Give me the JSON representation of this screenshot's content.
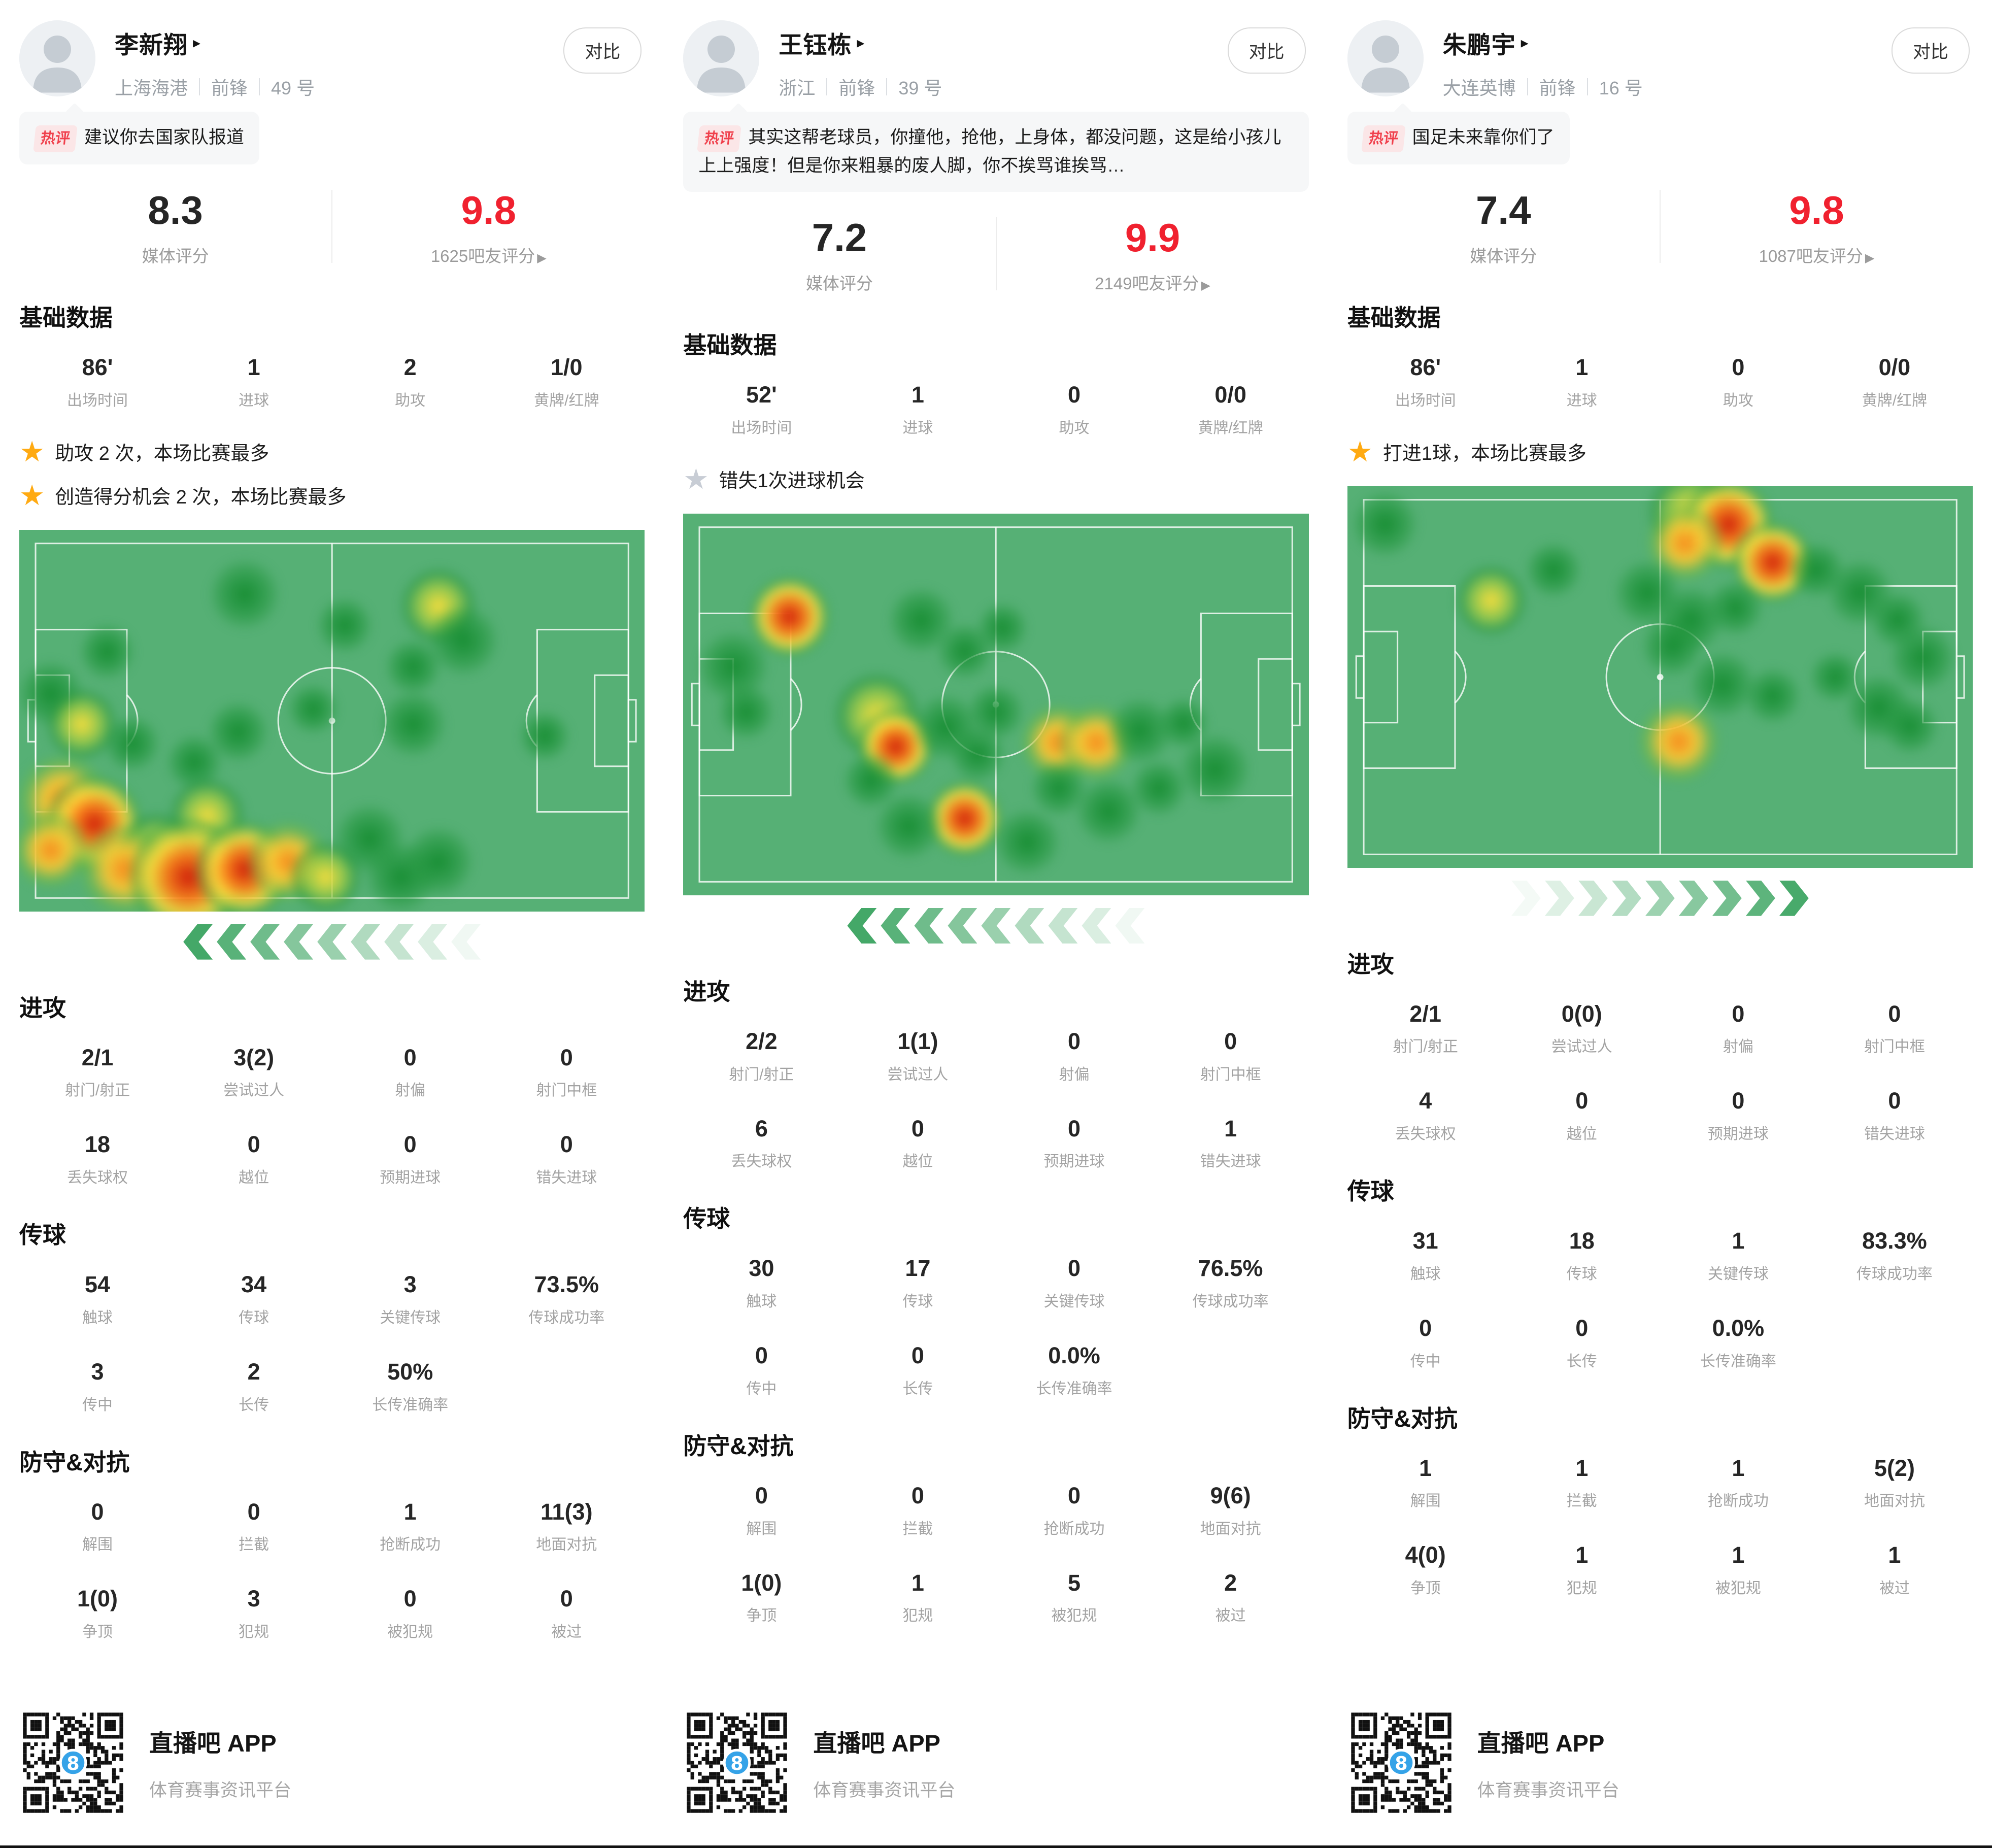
{
  "ui": {
    "compare_label": "对比",
    "hot_tag": "热评",
    "media_score_label": "媒体评分",
    "basic_title": "基础数据",
    "attack_title": "进攻",
    "passing_title": "传球",
    "defense_title": "防守&对抗",
    "detail_arrow": "▸",
    "fan_arrow": "▶",
    "accent_red": "#f0212f",
    "pitch_green": "#56b075",
    "chevron_green": "#44a868",
    "star_gold": "#ffaa12",
    "star_gray": "#c8cdd5"
  },
  "footer": {
    "app_name": "直播吧 APP",
    "tagline": "体育赛事资讯平台"
  },
  "color_levels": {
    "g": "green",
    "y": "yellow",
    "o": "orange",
    "r": "red"
  },
  "players": [
    {
      "name": "李新翔",
      "team": "上海海港",
      "position": "前锋",
      "number": "49 号",
      "comment": "建议你去国家队报道",
      "media_score": "8.3",
      "fan_score": "9.8",
      "fan_score_label": "1625吧友评分",
      "basic": {
        "items": [
          {
            "value": "86'",
            "label": "出场时间"
          },
          {
            "value": "1",
            "label": "进球"
          },
          {
            "value": "2",
            "label": "助攻"
          },
          {
            "value": "1/0",
            "label": "黄牌/红牌"
          }
        ]
      },
      "highlights": [
        {
          "star": "gold",
          "text": "助攻 2 次，本场比赛最多"
        },
        {
          "star": "gold",
          "text": "创造得分机会 2 次，本场比赛最多"
        }
      ],
      "heatmap": {
        "direction": "left",
        "points": [
          [
            0.36,
            0.17,
            "g",
            140
          ],
          [
            0.14,
            0.32,
            "g",
            110
          ],
          [
            0.52,
            0.25,
            "g",
            110
          ],
          [
            0.67,
            0.2,
            "y",
            150
          ],
          [
            0.71,
            0.29,
            "g",
            140
          ],
          [
            0.63,
            0.36,
            "g",
            110
          ],
          [
            0.05,
            0.43,
            "g",
            130
          ],
          [
            0.1,
            0.51,
            "y",
            140
          ],
          [
            0.18,
            0.56,
            "g",
            110
          ],
          [
            0.35,
            0.53,
            "g",
            120
          ],
          [
            0.47,
            0.47,
            "g",
            100
          ],
          [
            0.63,
            0.51,
            "g",
            130
          ],
          [
            0.28,
            0.61,
            "g",
            110
          ],
          [
            0.84,
            0.54,
            "g",
            100
          ],
          [
            0.07,
            0.71,
            "o",
            180
          ],
          [
            0.12,
            0.77,
            "r",
            190
          ],
          [
            0.05,
            0.84,
            "o",
            150
          ],
          [
            0.3,
            0.75,
            "y",
            150
          ],
          [
            0.22,
            0.84,
            "y",
            150
          ],
          [
            0.17,
            0.89,
            "o",
            180
          ],
          [
            0.27,
            0.91,
            "r",
            230
          ],
          [
            0.36,
            0.89,
            "r",
            190
          ],
          [
            0.43,
            0.87,
            "o",
            160
          ],
          [
            0.49,
            0.91,
            "y",
            140
          ],
          [
            0.56,
            0.81,
            "g",
            140
          ],
          [
            0.61,
            0.91,
            "g",
            140
          ],
          [
            0.67,
            0.87,
            "g",
            140
          ]
        ]
      },
      "attack": {
        "items": [
          {
            "value": "2/1",
            "label": "射门/射正"
          },
          {
            "value": "3(2)",
            "label": "尝试过人"
          },
          {
            "value": "0",
            "label": "射偏"
          },
          {
            "value": "0",
            "label": "射门中框"
          },
          {
            "value": "18",
            "label": "丢失球权"
          },
          {
            "value": "0",
            "label": "越位"
          },
          {
            "value": "0",
            "label": "预期进球"
          },
          {
            "value": "0",
            "label": "错失进球"
          }
        ]
      },
      "passing": {
        "items": [
          {
            "value": "54",
            "label": "触球"
          },
          {
            "value": "34",
            "label": "传球"
          },
          {
            "value": "3",
            "label": "关键传球"
          },
          {
            "value": "73.5%",
            "label": "传球成功率"
          },
          {
            "value": "3",
            "label": "传中"
          },
          {
            "value": "2",
            "label": "长传"
          },
          {
            "value": "50%",
            "label": "长传准确率"
          }
        ]
      },
      "defense": {
        "items": [
          {
            "value": "0",
            "label": "解围"
          },
          {
            "value": "0",
            "label": "拦截"
          },
          {
            "value": "1",
            "label": "抢断成功"
          },
          {
            "value": "11(3)",
            "label": "地面对抗"
          },
          {
            "value": "1(0)",
            "label": "争顶"
          },
          {
            "value": "3",
            "label": "犯规"
          },
          {
            "value": "0",
            "label": "被犯规"
          },
          {
            "value": "0",
            "label": "被过"
          }
        ]
      }
    },
    {
      "name": "王钰栋",
      "team": "浙江",
      "position": "前锋",
      "number": "39 号",
      "comment": "其实这帮老球员，你撞他，抢他，上身体，都没问题，这是给小孩儿上上强度！但是你来粗暴的废人脚，你不挨骂谁挨骂…",
      "media_score": "7.2",
      "fan_score": "9.9",
      "fan_score_label": "2149吧友评分",
      "basic": {
        "items": [
          {
            "value": "52'",
            "label": "出场时间"
          },
          {
            "value": "1",
            "label": "进球"
          },
          {
            "value": "0",
            "label": "助攻"
          },
          {
            "value": "0/0",
            "label": "黄牌/红牌"
          }
        ]
      },
      "highlights": [
        {
          "star": "gray",
          "text": "错失1次进球机会"
        }
      ],
      "heatmap": {
        "direction": "left",
        "points": [
          [
            0.17,
            0.27,
            "r",
            160
          ],
          [
            0.08,
            0.4,
            "g",
            140
          ],
          [
            0.1,
            0.52,
            "g",
            110
          ],
          [
            0.38,
            0.28,
            "g",
            130
          ],
          [
            0.45,
            0.36,
            "g",
            110
          ],
          [
            0.51,
            0.3,
            "g",
            100
          ],
          [
            0.31,
            0.53,
            "y",
            170
          ],
          [
            0.34,
            0.61,
            "r",
            150
          ],
          [
            0.42,
            0.56,
            "g",
            130
          ],
          [
            0.5,
            0.52,
            "g",
            110
          ],
          [
            0.47,
            0.63,
            "g",
            110
          ],
          [
            0.6,
            0.6,
            "o",
            150
          ],
          [
            0.66,
            0.6,
            "o",
            150
          ],
          [
            0.73,
            0.57,
            "g",
            130
          ],
          [
            0.8,
            0.55,
            "g",
            100
          ],
          [
            0.85,
            0.67,
            "g",
            140
          ],
          [
            0.76,
            0.72,
            "g",
            110
          ],
          [
            0.68,
            0.78,
            "g",
            130
          ],
          [
            0.6,
            0.72,
            "g",
            110
          ],
          [
            0.45,
            0.8,
            "r",
            150
          ],
          [
            0.36,
            0.82,
            "g",
            130
          ],
          [
            0.55,
            0.86,
            "g",
            130
          ],
          [
            0.3,
            0.7,
            "g",
            110
          ]
        ]
      },
      "attack": {
        "items": [
          {
            "value": "2/2",
            "label": "射门/射正"
          },
          {
            "value": "1(1)",
            "label": "尝试过人"
          },
          {
            "value": "0",
            "label": "射偏"
          },
          {
            "value": "0",
            "label": "射门中框"
          },
          {
            "value": "6",
            "label": "丢失球权"
          },
          {
            "value": "0",
            "label": "越位"
          },
          {
            "value": "0",
            "label": "预期进球"
          },
          {
            "value": "1",
            "label": "错失进球"
          }
        ]
      },
      "passing": {
        "items": [
          {
            "value": "30",
            "label": "触球"
          },
          {
            "value": "17",
            "label": "传球"
          },
          {
            "value": "0",
            "label": "关键传球"
          },
          {
            "value": "76.5%",
            "label": "传球成功率"
          },
          {
            "value": "0",
            "label": "传中"
          },
          {
            "value": "0",
            "label": "长传"
          },
          {
            "value": "0.0%",
            "label": "长传准确率"
          }
        ]
      },
      "defense": {
        "items": [
          {
            "value": "0",
            "label": "解围"
          },
          {
            "value": "0",
            "label": "拦截"
          },
          {
            "value": "0",
            "label": "抢断成功"
          },
          {
            "value": "9(6)",
            "label": "地面对抗"
          },
          {
            "value": "1(0)",
            "label": "争顶"
          },
          {
            "value": "1",
            "label": "犯规"
          },
          {
            "value": "5",
            "label": "被犯规"
          },
          {
            "value": "2",
            "label": "被过"
          }
        ]
      }
    },
    {
      "name": "朱鹏宇",
      "team": "大连英博",
      "position": "前锋",
      "number": "16 号",
      "comment": "国足未来靠你们了",
      "media_score": "7.4",
      "fan_score": "9.8",
      "fan_score_label": "1087吧友评分",
      "basic": {
        "items": [
          {
            "value": "86'",
            "label": "出场时间"
          },
          {
            "value": "1",
            "label": "进球"
          },
          {
            "value": "0",
            "label": "助攻"
          },
          {
            "value": "0/0",
            "label": "黄牌/红牌"
          }
        ]
      },
      "highlights": [
        {
          "star": "gold",
          "text": "打进1球，本场比赛最多"
        }
      ],
      "heatmap": {
        "direction": "right",
        "points": [
          [
            0.06,
            0.1,
            "g",
            130
          ],
          [
            0.23,
            0.3,
            "y",
            140
          ],
          [
            0.33,
            0.22,
            "g",
            110
          ],
          [
            0.55,
            0.07,
            "y",
            170
          ],
          [
            0.61,
            0.1,
            "r",
            180
          ],
          [
            0.54,
            0.15,
            "o",
            150
          ],
          [
            0.68,
            0.2,
            "r",
            160
          ],
          [
            0.48,
            0.28,
            "g",
            130
          ],
          [
            0.55,
            0.35,
            "g",
            130
          ],
          [
            0.62,
            0.32,
            "g",
            110
          ],
          [
            0.52,
            0.42,
            "g",
            120
          ],
          [
            0.75,
            0.22,
            "g",
            110
          ],
          [
            0.82,
            0.28,
            "g",
            130
          ],
          [
            0.88,
            0.35,
            "g",
            110
          ],
          [
            0.92,
            0.45,
            "g",
            130
          ],
          [
            0.6,
            0.52,
            "g",
            130
          ],
          [
            0.68,
            0.55,
            "g",
            110
          ],
          [
            0.78,
            0.5,
            "g",
            100
          ],
          [
            0.53,
            0.67,
            "o",
            160
          ],
          [
            0.85,
            0.58,
            "g",
            130
          ],
          [
            0.9,
            0.63,
            "g",
            110
          ]
        ]
      },
      "attack": {
        "items": [
          {
            "value": "2/1",
            "label": "射门/射正"
          },
          {
            "value": "0(0)",
            "label": "尝试过人"
          },
          {
            "value": "0",
            "label": "射偏"
          },
          {
            "value": "0",
            "label": "射门中框"
          },
          {
            "value": "4",
            "label": "丢失球权"
          },
          {
            "value": "0",
            "label": "越位"
          },
          {
            "value": "0",
            "label": "预期进球"
          },
          {
            "value": "0",
            "label": "错失进球"
          }
        ]
      },
      "passing": {
        "items": [
          {
            "value": "31",
            "label": "触球"
          },
          {
            "value": "18",
            "label": "传球"
          },
          {
            "value": "1",
            "label": "关键传球"
          },
          {
            "value": "83.3%",
            "label": "传球成功率"
          },
          {
            "value": "0",
            "label": "传中"
          },
          {
            "value": "0",
            "label": "长传"
          },
          {
            "value": "0.0%",
            "label": "长传准确率"
          }
        ]
      },
      "defense": {
        "items": [
          {
            "value": "1",
            "label": "解围"
          },
          {
            "value": "1",
            "label": "拦截"
          },
          {
            "value": "1",
            "label": "抢断成功"
          },
          {
            "value": "5(2)",
            "label": "地面对抗"
          },
          {
            "value": "4(0)",
            "label": "争顶"
          },
          {
            "value": "1",
            "label": "犯规"
          },
          {
            "value": "1",
            "label": "被犯规"
          },
          {
            "value": "1",
            "label": "被过"
          }
        ]
      }
    }
  ]
}
